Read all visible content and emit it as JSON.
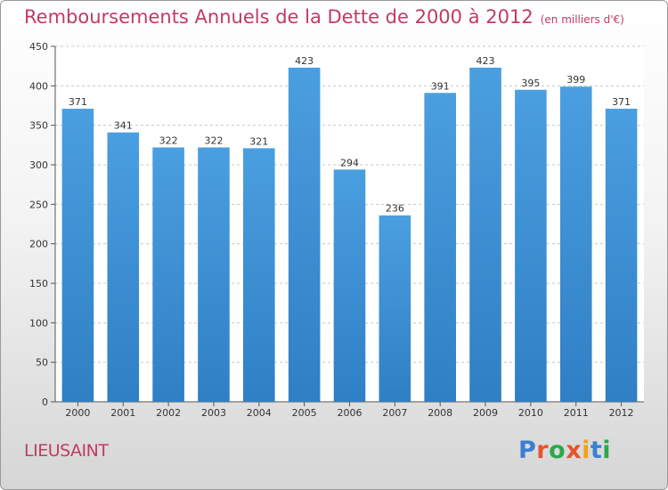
{
  "title": "Remboursements Annuels de la Dette de 2000 à 2012",
  "subtitle": "(en milliers d'€)",
  "commune": "LIEUSAINT",
  "logo_text": "Proxiti",
  "colors": {
    "bar": "#4a9fe0",
    "bar_dark": "#2f7fc4",
    "title": "#c23a62",
    "grid": "#c8c8c8"
  },
  "chart_data": {
    "type": "bar",
    "categories": [
      "2000",
      "2001",
      "2002",
      "2003",
      "2004",
      "2005",
      "2006",
      "2007",
      "2008",
      "2009",
      "2010",
      "2011",
      "2012"
    ],
    "values": [
      371,
      341,
      322,
      322,
      321,
      423,
      294,
      236,
      391,
      423,
      395,
      399,
      371
    ],
    "ylim": [
      0,
      450
    ],
    "yticks": [
      0,
      50,
      100,
      150,
      200,
      250,
      300,
      350,
      400,
      450
    ],
    "grid": true,
    "title": "Remboursements Annuels de la Dette de 2000 à 2012",
    "xlabel": "",
    "ylabel": ""
  }
}
